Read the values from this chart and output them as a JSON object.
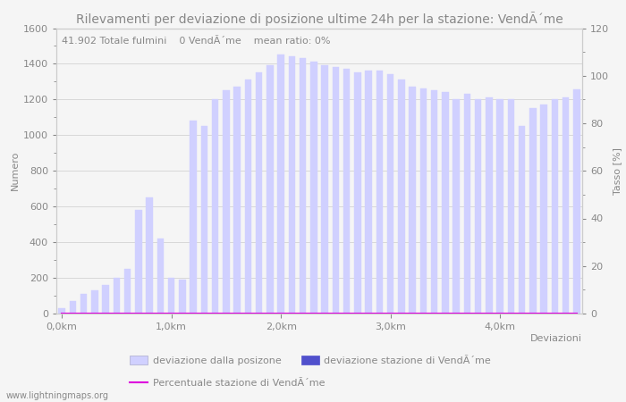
{
  "title": "Rilevamenti per deviazione di posizione ultime 24h per la stazione: VendÃ´me",
  "subtitle": "41.902 Totale fulmini    0 VendÃ´me    mean ratio: 0%",
  "ylabel_left": "Numero",
  "ylabel_right": "Tasso [%]",
  "xlabel": "Deviazioni",
  "ylim_left": [
    0,
    1600
  ],
  "ylim_right": [
    0,
    120
  ],
  "yticks_left": [
    0,
    200,
    400,
    600,
    800,
    1000,
    1200,
    1400,
    1600
  ],
  "yticks_right": [
    0,
    20,
    40,
    60,
    80,
    100,
    120
  ],
  "xtick_labels": [
    "0,0km",
    "1,0km",
    "2,0km",
    "3,0km",
    "4,0km"
  ],
  "xtick_positions": [
    0,
    10,
    20,
    30,
    40
  ],
  "bar_width": 0.6,
  "bar_color_light": "#d0d0ff",
  "bar_color_dark": "#5050cc",
  "line_color": "#dd00dd",
  "background_color": "#f5f5f5",
  "grid_color": "#cccccc",
  "text_color": "#888888",
  "legend_labels": [
    "deviazione dalla posizone",
    "deviazione stazione di VendÃ´me",
    "Percentuale stazione di VendÃ´me"
  ],
  "watermark": "www.lightningmaps.org",
  "bar_values": [
    30,
    70,
    110,
    130,
    160,
    200,
    250,
    580,
    650,
    420,
    200,
    190,
    1080,
    1050,
    1200,
    1250,
    1270,
    1310,
    1350,
    1390,
    1450,
    1440,
    1430,
    1410,
    1390,
    1380,
    1370,
    1350,
    1360,
    1360,
    1340,
    1310,
    1270,
    1260,
    1250,
    1240,
    1200,
    1230,
    1200,
    1210,
    1200,
    1200,
    1050,
    1150,
    1170,
    1200,
    1210,
    1255
  ],
  "dark_bar_values": [
    0,
    0,
    0,
    0,
    0,
    0,
    0,
    0,
    0,
    0,
    0,
    0,
    0,
    0,
    0,
    0,
    0,
    0,
    0,
    0,
    0,
    0,
    0,
    0,
    0,
    0,
    0,
    0,
    0,
    0,
    0,
    0,
    0,
    0,
    0,
    0,
    0,
    0,
    0,
    0,
    0,
    0,
    0,
    0,
    0,
    0,
    0,
    0
  ],
  "ratio_values": [
    0,
    0,
    0,
    0,
    0,
    0,
    0,
    0,
    0,
    0,
    0,
    0,
    0,
    0,
    0,
    0,
    0,
    0,
    0,
    0,
    0,
    0,
    0,
    0,
    0,
    0,
    0,
    0,
    0,
    0,
    0,
    0,
    0,
    0,
    0,
    0,
    0,
    0,
    0,
    0,
    0,
    0,
    0,
    0,
    0,
    0,
    0,
    0
  ],
  "title_fontsize": 10,
  "axis_fontsize": 8,
  "tick_fontsize": 8,
  "subtitle_fontsize": 8
}
